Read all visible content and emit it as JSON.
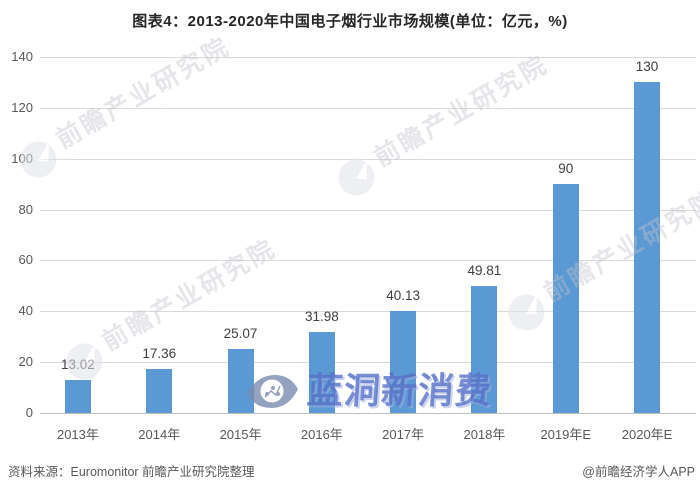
{
  "figure": {
    "title": "图表4：2013-2020年中国电子烟行业市场规模(单位：亿元，%)"
  },
  "chart_data": {
    "type": "bar",
    "title": "图表4：2013-2020年中国电子烟行业市场规模(单位：亿元，%)",
    "categories": [
      "2013年",
      "2014年",
      "2015年",
      "2016年",
      "2017年",
      "2018年",
      "2019年E",
      "2020年E"
    ],
    "values": [
      13.02,
      17.36,
      25.07,
      31.98,
      40.13,
      49.81,
      90,
      130
    ],
    "value_labels": [
      "13.02",
      "17.36",
      "25.07",
      "31.98",
      "40.13",
      "49.81",
      "90",
      "130"
    ],
    "xlabel": "",
    "ylabel": "",
    "ylim": [
      0,
      140
    ],
    "yticks": [
      0,
      20,
      40,
      60,
      80,
      100,
      120,
      140
    ],
    "grid": true,
    "legend": "none",
    "bar_color": "#5A99D3"
  },
  "watermarks": {
    "brand": {
      "text": "前瞻产业研究院",
      "subtext": "· · · · · · · · · · · · · · · · · · · · · ·",
      "logo": "qianzhan-logo"
    },
    "center": {
      "text": "蓝洞新消费",
      "logo": "eye"
    }
  },
  "footer": {
    "source": "资料来源：Euromonitor 前瞻产业研究院整理",
    "credit": "@前瞻经济学人APP"
  },
  "colors": {
    "bar": "#5A99D3",
    "grid": "#D9D9D9",
    "axis": "#BFBFBF",
    "tick_text": "#595959",
    "value_text": "#404040",
    "title_text": "#262626",
    "watermark_center": "#5470C6"
  }
}
